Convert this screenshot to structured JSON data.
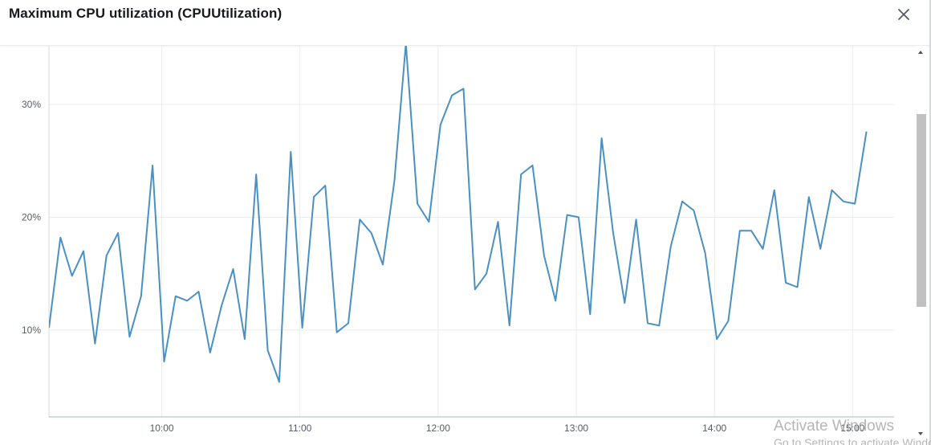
{
  "header": {
    "title": "Maximum CPU utilization (CPUUtilization)",
    "close_icon": "close-icon"
  },
  "chart_data": {
    "type": "line",
    "title": "Maximum CPU utilization (CPUUtilization)",
    "xlabel": "",
    "ylabel": "",
    "x_tick_labels": [
      "10:00",
      "11:00",
      "12:00",
      "13:00",
      "14:00",
      "15:00"
    ],
    "y_tick_labels": [
      "10%",
      "20%",
      "30%"
    ],
    "y_ticks": [
      10,
      20,
      30
    ],
    "ylim": [
      2.3,
      35.2
    ],
    "xlim": [
      "09:11",
      "15:18"
    ],
    "grid": true,
    "color": "#4a90c2",
    "series": [
      {
        "x": [
          "09:11",
          "09:16",
          "09:21",
          "09:26",
          "09:31",
          "09:36",
          "09:41",
          "09:46",
          "09:51",
          "09:56",
          "10:01",
          "10:06",
          "10:11",
          "10:16",
          "10:21",
          "10:26",
          "10:31",
          "10:36",
          "10:41",
          "10:46",
          "10:51",
          "10:56",
          "11:01",
          "11:06",
          "11:11",
          "11:16",
          "11:21",
          "11:26",
          "11:31",
          "11:36",
          "11:41",
          "11:46",
          "11:51",
          "11:56",
          "12:01",
          "12:06",
          "12:11",
          "12:16",
          "12:21",
          "12:26",
          "12:31",
          "12:36",
          "12:41",
          "12:46",
          "12:51",
          "12:56",
          "13:01",
          "13:06",
          "13:11",
          "13:16",
          "13:21",
          "13:26",
          "13:31",
          "13:36",
          "13:41",
          "13:46",
          "13:51",
          "13:56",
          "14:01",
          "14:06",
          "14:11",
          "14:16",
          "14:21",
          "14:26",
          "14:31",
          "14:36",
          "14:41",
          "14:46",
          "14:51",
          "14:56",
          "15:01",
          "15:06"
        ],
        "values": [
          10.2,
          18.2,
          14.8,
          17.0,
          8.8,
          16.6,
          18.6,
          9.4,
          13.0,
          24.6,
          7.2,
          13.0,
          12.6,
          13.4,
          8.0,
          12.2,
          15.4,
          9.2,
          23.8,
          8.2,
          5.4,
          25.8,
          10.2,
          21.8,
          22.8,
          9.8,
          10.6,
          19.8,
          18.6,
          15.8,
          23.2,
          35.4,
          21.2,
          19.6,
          28.2,
          30.8,
          31.4,
          13.6,
          15.0,
          19.6,
          10.4,
          23.8,
          24.6,
          16.6,
          12.6,
          20.2,
          20.0,
          11.4,
          27.0,
          18.6,
          12.4,
          19.8,
          10.6,
          10.4,
          17.4,
          21.4,
          20.6,
          16.8,
          9.2,
          10.8,
          18.8,
          18.8,
          17.2,
          22.4,
          14.2,
          13.8,
          21.8,
          17.2,
          22.4,
          21.4,
          21.2,
          27.6
        ]
      }
    ]
  },
  "scrollbar": {
    "up_icon": "scroll-up-arrow-icon",
    "down_icon": "scroll-down-arrow-icon"
  },
  "watermark": {
    "line1": "Activate Windows",
    "line2": "Go to Settings to activate Windows."
  }
}
